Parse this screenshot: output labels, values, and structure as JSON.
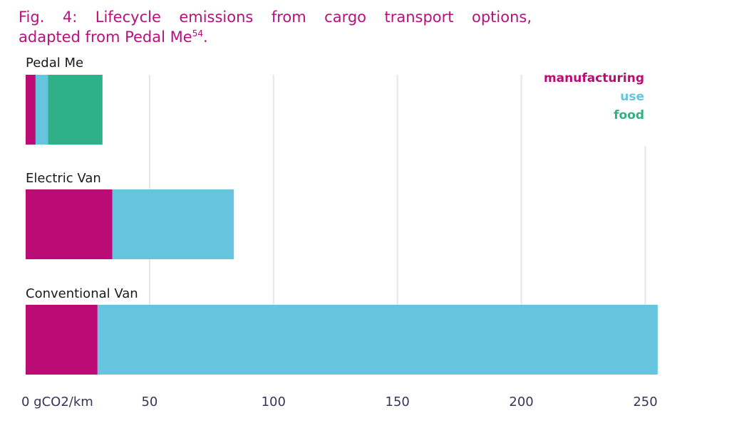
{
  "figure": {
    "title_line1": "Fig. 4: Lifecycle emissions from cargo transport options,",
    "title_line2": "adapted from Pedal Me",
    "title_ref": "54",
    "title_end": "."
  },
  "colors": {
    "title": "#b5127e",
    "manufacturing": "#bb0c76",
    "use": "#67c4de",
    "food": "#30b088",
    "grid": "#e6e6ea",
    "axis_text": "#3a3356"
  },
  "chart_data": {
    "type": "bar",
    "orientation": "horizontal",
    "stacked": true,
    "categories": [
      "Pedal Me",
      "Electric Van",
      "Conventional Van"
    ],
    "series": [
      {
        "name": "manufacturing",
        "color": "#bb0c76",
        "values": [
          4,
          35,
          29
        ]
      },
      {
        "name": "use",
        "color": "#67c4de",
        "values": [
          5,
          49,
          226
        ]
      },
      {
        "name": "food",
        "color": "#30b088",
        "values": [
          22,
          0,
          0
        ]
      }
    ],
    "xticks": [
      0,
      50,
      100,
      150,
      200,
      250
    ],
    "xtick_labels": [
      "0 gCO2/km",
      "50",
      "100",
      "150",
      "200",
      "250"
    ],
    "xlim": [
      0,
      255
    ],
    "grid": "vertical",
    "legend_position": "top-right",
    "title": "Fig. 4: Lifecycle emissions from cargo transport options, adapted from Pedal Me54.",
    "xlabel": "",
    "ylabel": ""
  }
}
